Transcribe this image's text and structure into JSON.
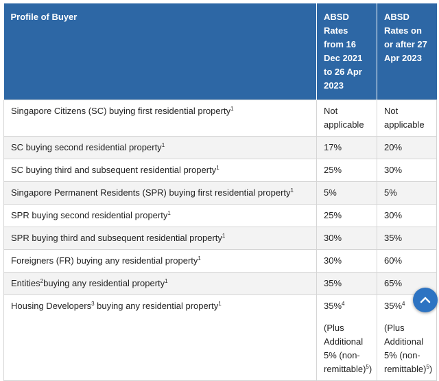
{
  "table": {
    "header": [
      "Profile of Buyer",
      "ABSD Rates from 16 Dec 2021 to 26 Apr 2023",
      "ABSD Rates on or after 27 Apr 2023"
    ],
    "rows": [
      [
        [
          [
            "Singapore Citizens (SC) buying first residential property",
            {
              "sup": "1"
            }
          ]
        ],
        [
          [
            "Not applicable"
          ]
        ],
        [
          [
            "Not applicable"
          ]
        ]
      ],
      [
        [
          [
            "SC buying second residential property",
            {
              "sup": "1"
            }
          ]
        ],
        [
          [
            "17%"
          ]
        ],
        [
          [
            "20%"
          ]
        ]
      ],
      [
        [
          [
            "SC buying third and subsequent residential property",
            {
              "sup": "1"
            }
          ]
        ],
        [
          [
            "25%"
          ]
        ],
        [
          [
            "30%"
          ]
        ]
      ],
      [
        [
          [
            "Singapore Permanent Residents (SPR) buying first residential property",
            {
              "sup": "1"
            }
          ]
        ],
        [
          [
            "5%"
          ]
        ],
        [
          [
            "5%"
          ]
        ]
      ],
      [
        [
          [
            "SPR buying second residential property",
            {
              "sup": "1"
            }
          ]
        ],
        [
          [
            "25%"
          ]
        ],
        [
          [
            "30%"
          ]
        ]
      ],
      [
        [
          [
            "SPR buying third and subsequent residential property",
            {
              "sup": "1"
            }
          ]
        ],
        [
          [
            "30%"
          ]
        ],
        [
          [
            "35%"
          ]
        ]
      ],
      [
        [
          [
            "Foreigners (FR) buying any residential property",
            {
              "sup": "1"
            }
          ]
        ],
        [
          [
            "30%"
          ]
        ],
        [
          [
            "60%"
          ]
        ]
      ],
      [
        [
          [
            "Entities",
            {
              "sup": "2"
            },
            "buying any residential property",
            {
              "sup": "1"
            }
          ]
        ],
        [
          [
            "35%"
          ]
        ],
        [
          [
            "65%"
          ]
        ]
      ],
      [
        [
          [
            "Housing Developers",
            {
              "sup": "3"
            },
            " buying any residential property",
            {
              "sup": "1"
            }
          ]
        ],
        [
          [
            "35%",
            {
              "sup": "4"
            }
          ],
          [
            "(Plus Additional 5% (non-remittable)",
            {
              "sup": "5"
            },
            ")"
          ]
        ],
        [
          [
            "35%",
            {
              "sup": "4"
            }
          ],
          [
            "(Plus Additional 5% (non-remittable)",
            {
              "sup": "5"
            },
            ")"
          ]
        ]
      ]
    ]
  }
}
